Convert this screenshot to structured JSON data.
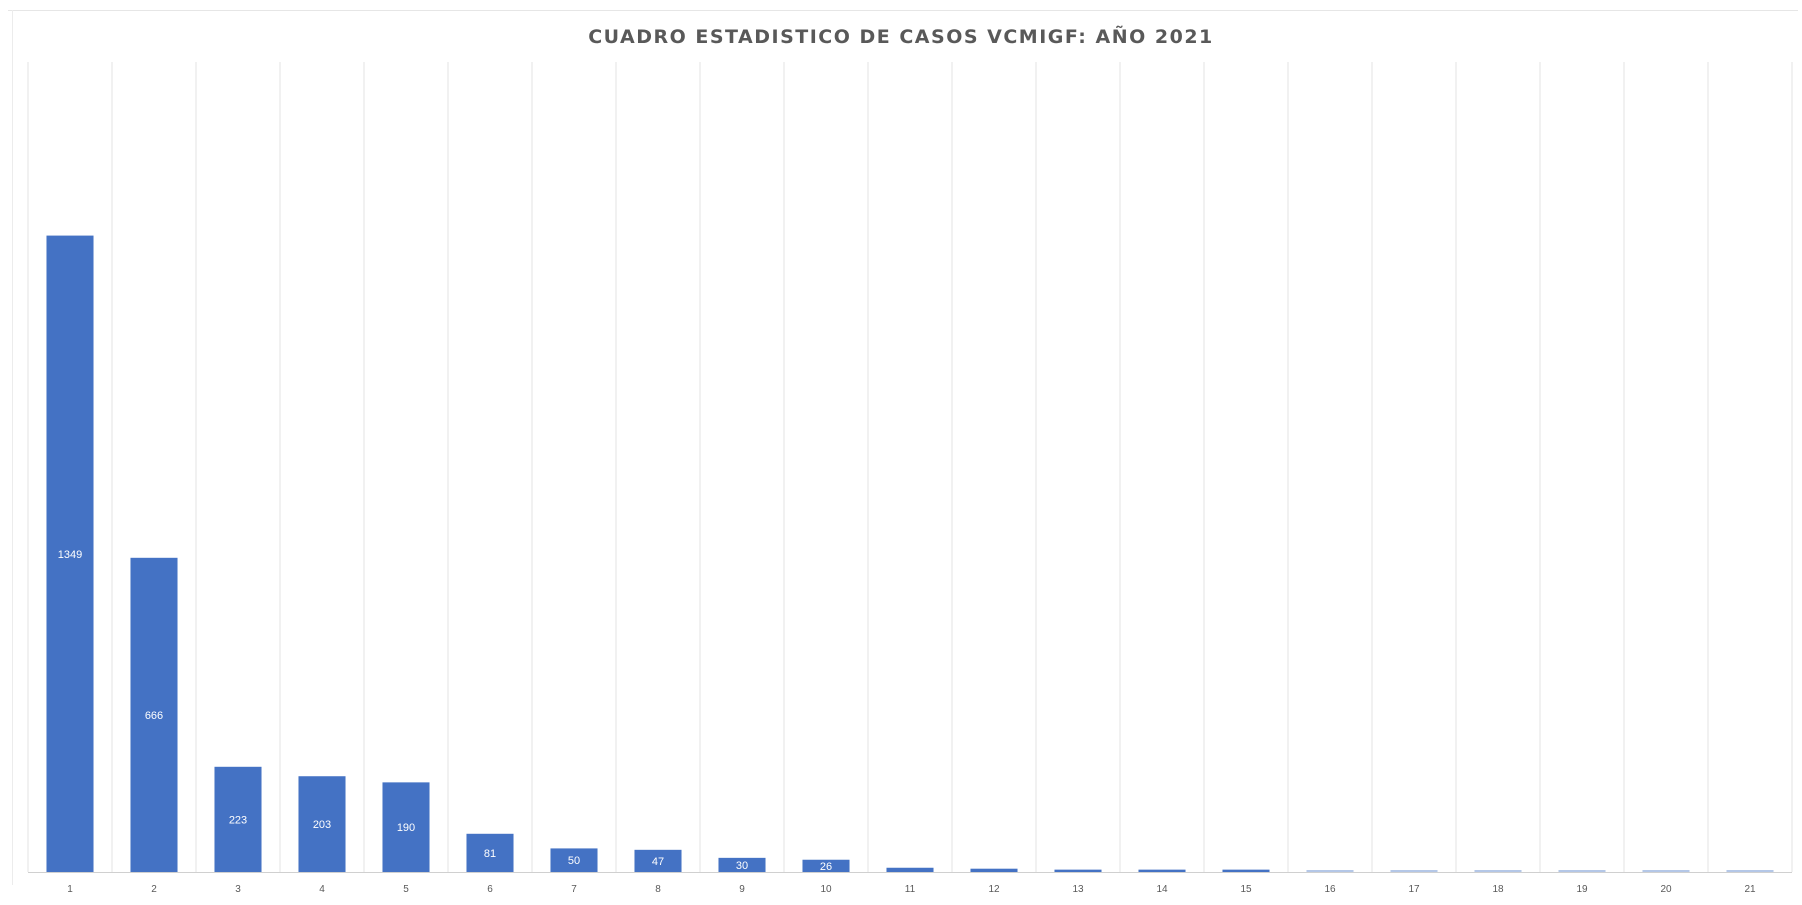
{
  "chart_data": {
    "type": "bar",
    "title": "CUADRO ESTADISTICO DE CASOS VCMIGF: AÑO 2021",
    "xlabel": "",
    "ylabel": "",
    "categories": [
      "1",
      "2",
      "3",
      "4",
      "5",
      "6",
      "7",
      "8",
      "9",
      "10",
      "11",
      "12",
      "13",
      "14",
      "15",
      "16",
      "17",
      "18",
      "19",
      "20",
      "21"
    ],
    "values": [
      1349,
      666,
      223,
      203,
      190,
      81,
      50,
      47,
      30,
      26,
      9,
      7,
      5,
      5,
      5,
      2,
      2,
      2,
      2,
      2,
      2
    ],
    "data_labels": [
      "1349",
      "666",
      "223",
      "203",
      "190",
      "81",
      "50",
      "47",
      "30",
      "26",
      "",
      "",
      "",
      "",
      "",
      "",
      "",
      "",
      "",
      "",
      ""
    ],
    "ylim": [
      0,
      1700
    ],
    "grid": "vertical",
    "legend": "none",
    "colors": {
      "bar": "#4472C4",
      "bar_light": "#B4C7E7",
      "grid": "#e3e3e3",
      "axis": "#d0d0d0",
      "title": "#595959",
      "tick": "#595959",
      "label": "#ffffff"
    }
  }
}
